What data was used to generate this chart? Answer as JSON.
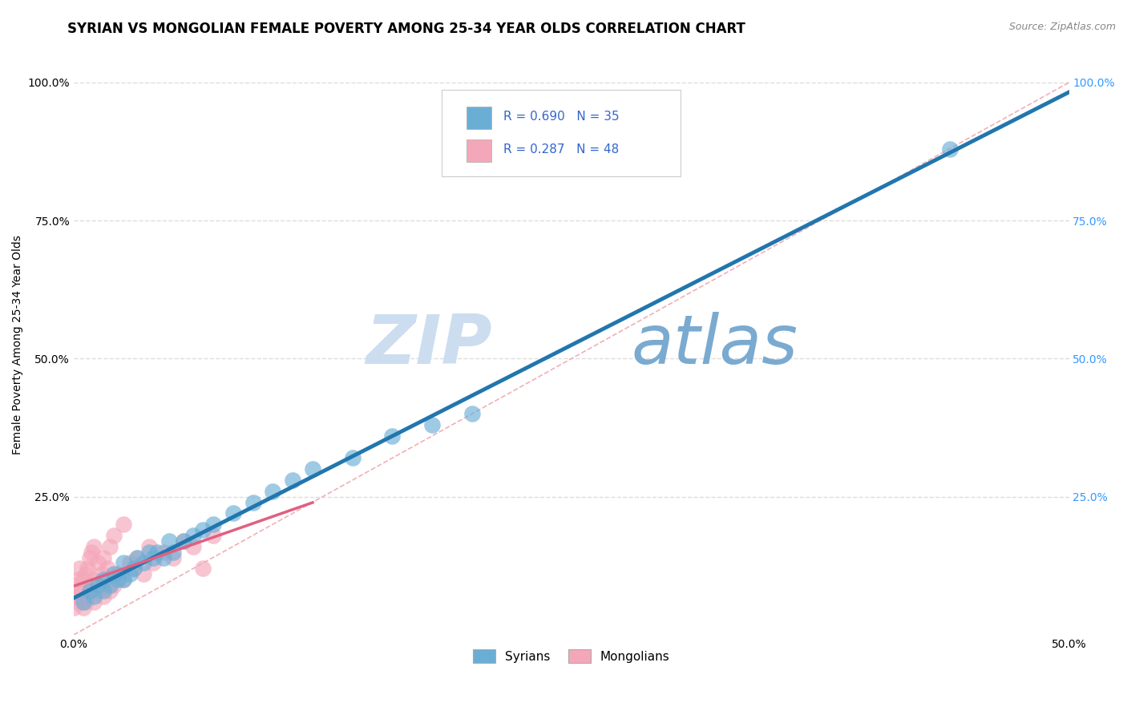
{
  "title": "SYRIAN VS MONGOLIAN FEMALE POVERTY AMONG 25-34 YEAR OLDS CORRELATION CHART",
  "source": "Source: ZipAtlas.com",
  "ylabel": "Female Poverty Among 25-34 Year Olds",
  "xlim": [
    0.0,
    0.5
  ],
  "ylim": [
    0.0,
    1.05
  ],
  "ytick_positions": [
    0.25,
    0.5,
    0.75,
    1.0
  ],
  "xtick_positions": [
    0.0,
    0.5
  ],
  "blue_color": "#6aaed6",
  "pink_color": "#f4a7b9",
  "blue_line_color": "#2176ae",
  "pink_line_color": "#e06080",
  "diag_line_color": "#f0b0b8",
  "watermark_zip_color": "#ccddf0",
  "watermark_atlas_color": "#7aaad0",
  "title_fontsize": 12,
  "axis_label_fontsize": 10,
  "tick_fontsize": 10,
  "source_fontsize": 9,
  "syrians_x": [
    0.005,
    0.008,
    0.01,
    0.012,
    0.015,
    0.015,
    0.018,
    0.02,
    0.022,
    0.025,
    0.025,
    0.028,
    0.03,
    0.032,
    0.035,
    0.038,
    0.04,
    0.042,
    0.045,
    0.048,
    0.05,
    0.055,
    0.06,
    0.065,
    0.07,
    0.08,
    0.09,
    0.1,
    0.11,
    0.12,
    0.14,
    0.16,
    0.18,
    0.2,
    0.44
  ],
  "syrians_y": [
    0.06,
    0.08,
    0.07,
    0.09,
    0.08,
    0.1,
    0.09,
    0.11,
    0.1,
    0.1,
    0.13,
    0.11,
    0.12,
    0.14,
    0.13,
    0.15,
    0.14,
    0.15,
    0.14,
    0.17,
    0.15,
    0.17,
    0.18,
    0.19,
    0.2,
    0.22,
    0.24,
    0.26,
    0.28,
    0.3,
    0.32,
    0.36,
    0.38,
    0.4,
    0.88
  ],
  "mongolians_x": [
    0.0,
    0.0,
    0.0,
    0.002,
    0.002,
    0.003,
    0.003,
    0.004,
    0.005,
    0.005,
    0.006,
    0.006,
    0.007,
    0.007,
    0.008,
    0.008,
    0.009,
    0.009,
    0.01,
    0.01,
    0.01,
    0.012,
    0.012,
    0.013,
    0.014,
    0.015,
    0.015,
    0.016,
    0.017,
    0.018,
    0.018,
    0.02,
    0.02,
    0.022,
    0.025,
    0.025,
    0.028,
    0.03,
    0.032,
    0.035,
    0.038,
    0.04,
    0.045,
    0.05,
    0.055,
    0.06,
    0.065,
    0.07
  ],
  "mongolians_y": [
    0.05,
    0.07,
    0.09,
    0.06,
    0.1,
    0.07,
    0.12,
    0.08,
    0.05,
    0.1,
    0.06,
    0.11,
    0.07,
    0.12,
    0.08,
    0.14,
    0.09,
    0.15,
    0.06,
    0.1,
    0.16,
    0.08,
    0.13,
    0.09,
    0.11,
    0.07,
    0.14,
    0.1,
    0.12,
    0.08,
    0.16,
    0.09,
    0.18,
    0.11,
    0.1,
    0.2,
    0.13,
    0.12,
    0.14,
    0.11,
    0.16,
    0.13,
    0.15,
    0.14,
    0.17,
    0.16,
    0.12,
    0.18
  ]
}
